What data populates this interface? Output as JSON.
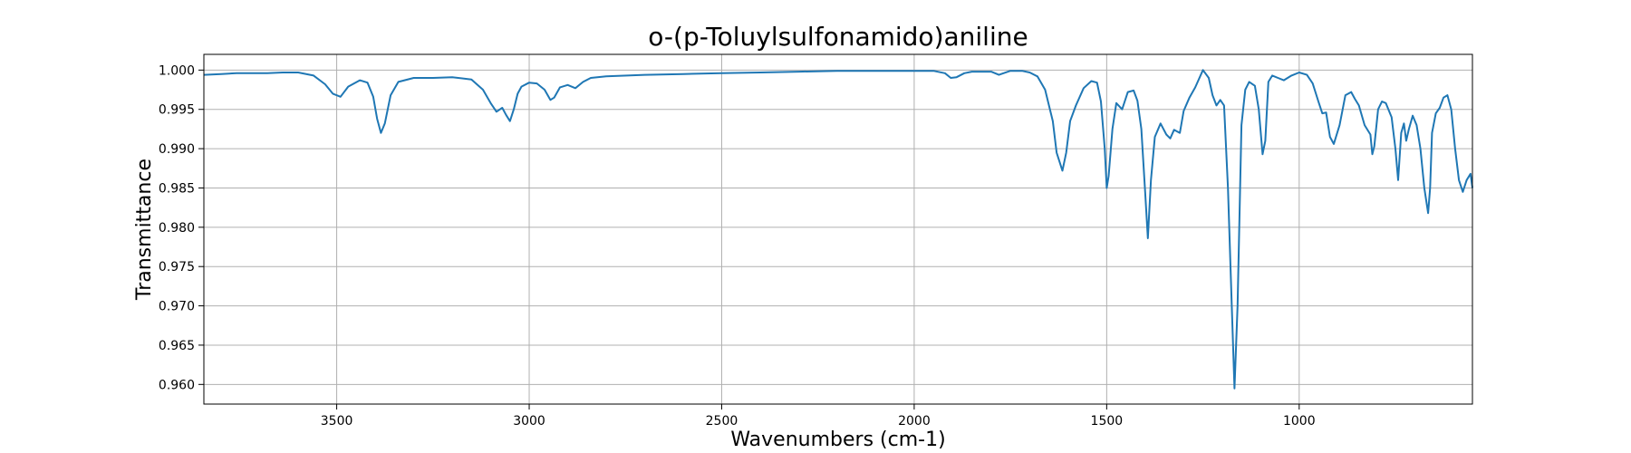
{
  "chart_data": {
    "type": "line",
    "title": "o-(p-Toluylsulfonamido)aniline",
    "xlabel": "Wavenumbers (cm-1)",
    "ylabel": "Transmittance",
    "xlim": [
      3845,
      550
    ],
    "ylim": [
      0.9575,
      1.002
    ],
    "x_ticks": [
      3500,
      3000,
      2500,
      2000,
      1500,
      1000
    ],
    "y_ticks": [
      0.96,
      0.965,
      0.97,
      0.975,
      0.98,
      0.985,
      0.99,
      0.995,
      1.0
    ],
    "x_tick_labels": [
      "3500",
      "3000",
      "2500",
      "2000",
      "1500",
      "1000"
    ],
    "y_tick_labels": [
      "0.960",
      "0.965",
      "0.970",
      "0.975",
      "0.980",
      "0.985",
      "0.990",
      "0.995",
      "1.000"
    ],
    "grid": true,
    "color": "#1f77b4",
    "series": [
      {
        "x": [
          3845,
          3800,
          3760,
          3720,
          3680,
          3640,
          3600,
          3560,
          3530,
          3510,
          3490,
          3470,
          3440,
          3420,
          3405,
          3395,
          3385,
          3375,
          3360,
          3340,
          3300,
          3250,
          3200,
          3150,
          3120,
          3100,
          3085,
          3070,
          3060,
          3050,
          3040,
          3030,
          3020,
          3000,
          2980,
          2960,
          2945,
          2935,
          2920,
          2900,
          2880,
          2860,
          2840,
          2800,
          2700,
          2600,
          2500,
          2400,
          2300,
          2200,
          2100,
          2000,
          1950,
          1920,
          1905,
          1890,
          1870,
          1850,
          1800,
          1780,
          1750,
          1720,
          1700,
          1680,
          1660,
          1640,
          1630,
          1615,
          1605,
          1595,
          1580,
          1560,
          1540,
          1525,
          1515,
          1505,
          1500,
          1495,
          1485,
          1475,
          1460,
          1445,
          1430,
          1420,
          1410,
          1400,
          1393,
          1385,
          1375,
          1360,
          1345,
          1335,
          1325,
          1310,
          1300,
          1285,
          1270,
          1250,
          1235,
          1225,
          1215,
          1205,
          1195,
          1185,
          1175,
          1168,
          1160,
          1150,
          1140,
          1130,
          1115,
          1105,
          1095,
          1088,
          1080,
          1070,
          1055,
          1040,
          1020,
          1000,
          980,
          965,
          950,
          940,
          930,
          920,
          910,
          895,
          880,
          865,
          855,
          845,
          830,
          815,
          810,
          805,
          795,
          785,
          775,
          760,
          750,
          743,
          735,
          728,
          722,
          715,
          705,
          695,
          685,
          675,
          665,
          660,
          655,
          645,
          635,
          625,
          615,
          605,
          595,
          585,
          575,
          565,
          555,
          550
        ],
        "y": [
          0.9994,
          0.9995,
          0.9996,
          0.9996,
          0.9996,
          0.9997,
          0.9997,
          0.9993,
          0.9982,
          0.997,
          0.9966,
          0.9979,
          0.9987,
          0.9984,
          0.9966,
          0.9938,
          0.992,
          0.9932,
          0.9968,
          0.9985,
          0.999,
          0.999,
          0.9991,
          0.9988,
          0.9975,
          0.9958,
          0.9947,
          0.9952,
          0.9943,
          0.9935,
          0.995,
          0.997,
          0.9979,
          0.9984,
          0.9983,
          0.9975,
          0.9962,
          0.9965,
          0.9978,
          0.9981,
          0.9977,
          0.9985,
          0.999,
          0.9992,
          0.9994,
          0.9995,
          0.9996,
          0.9997,
          0.9998,
          0.9999,
          0.9999,
          0.9999,
          0.9999,
          0.9996,
          0.999,
          0.9991,
          0.9996,
          0.9998,
          0.9998,
          0.9994,
          0.9999,
          0.9999,
          0.9997,
          0.9992,
          0.9975,
          0.9935,
          0.9895,
          0.9872,
          0.9895,
          0.9935,
          0.9955,
          0.9977,
          0.9986,
          0.9984,
          0.996,
          0.99,
          0.985,
          0.9865,
          0.9925,
          0.9958,
          0.995,
          0.9972,
          0.9974,
          0.9961,
          0.9925,
          0.9845,
          0.9786,
          0.986,
          0.9915,
          0.9932,
          0.9918,
          0.9913,
          0.9924,
          0.992,
          0.9948,
          0.9965,
          0.9978,
          1.0,
          0.999,
          0.9968,
          0.9955,
          0.9962,
          0.9955,
          0.985,
          0.97,
          0.9595,
          0.97,
          0.993,
          0.9975,
          0.9985,
          0.998,
          0.995,
          0.9893,
          0.991,
          0.9985,
          0.9993,
          0.999,
          0.9987,
          0.9993,
          0.9997,
          0.9994,
          0.9983,
          0.996,
          0.9945,
          0.9946,
          0.9915,
          0.9906,
          0.993,
          0.9968,
          0.9972,
          0.9963,
          0.9955,
          0.993,
          0.9918,
          0.9893,
          0.9903,
          0.995,
          0.996,
          0.9958,
          0.994,
          0.99,
          0.986,
          0.992,
          0.9932,
          0.991,
          0.9925,
          0.9942,
          0.993,
          0.99,
          0.985,
          0.9818,
          0.985,
          0.992,
          0.9945,
          0.9952,
          0.9965,
          0.9968,
          0.995,
          0.99,
          0.986,
          0.9845,
          0.986,
          0.9868,
          0.985
        ]
      }
    ]
  }
}
